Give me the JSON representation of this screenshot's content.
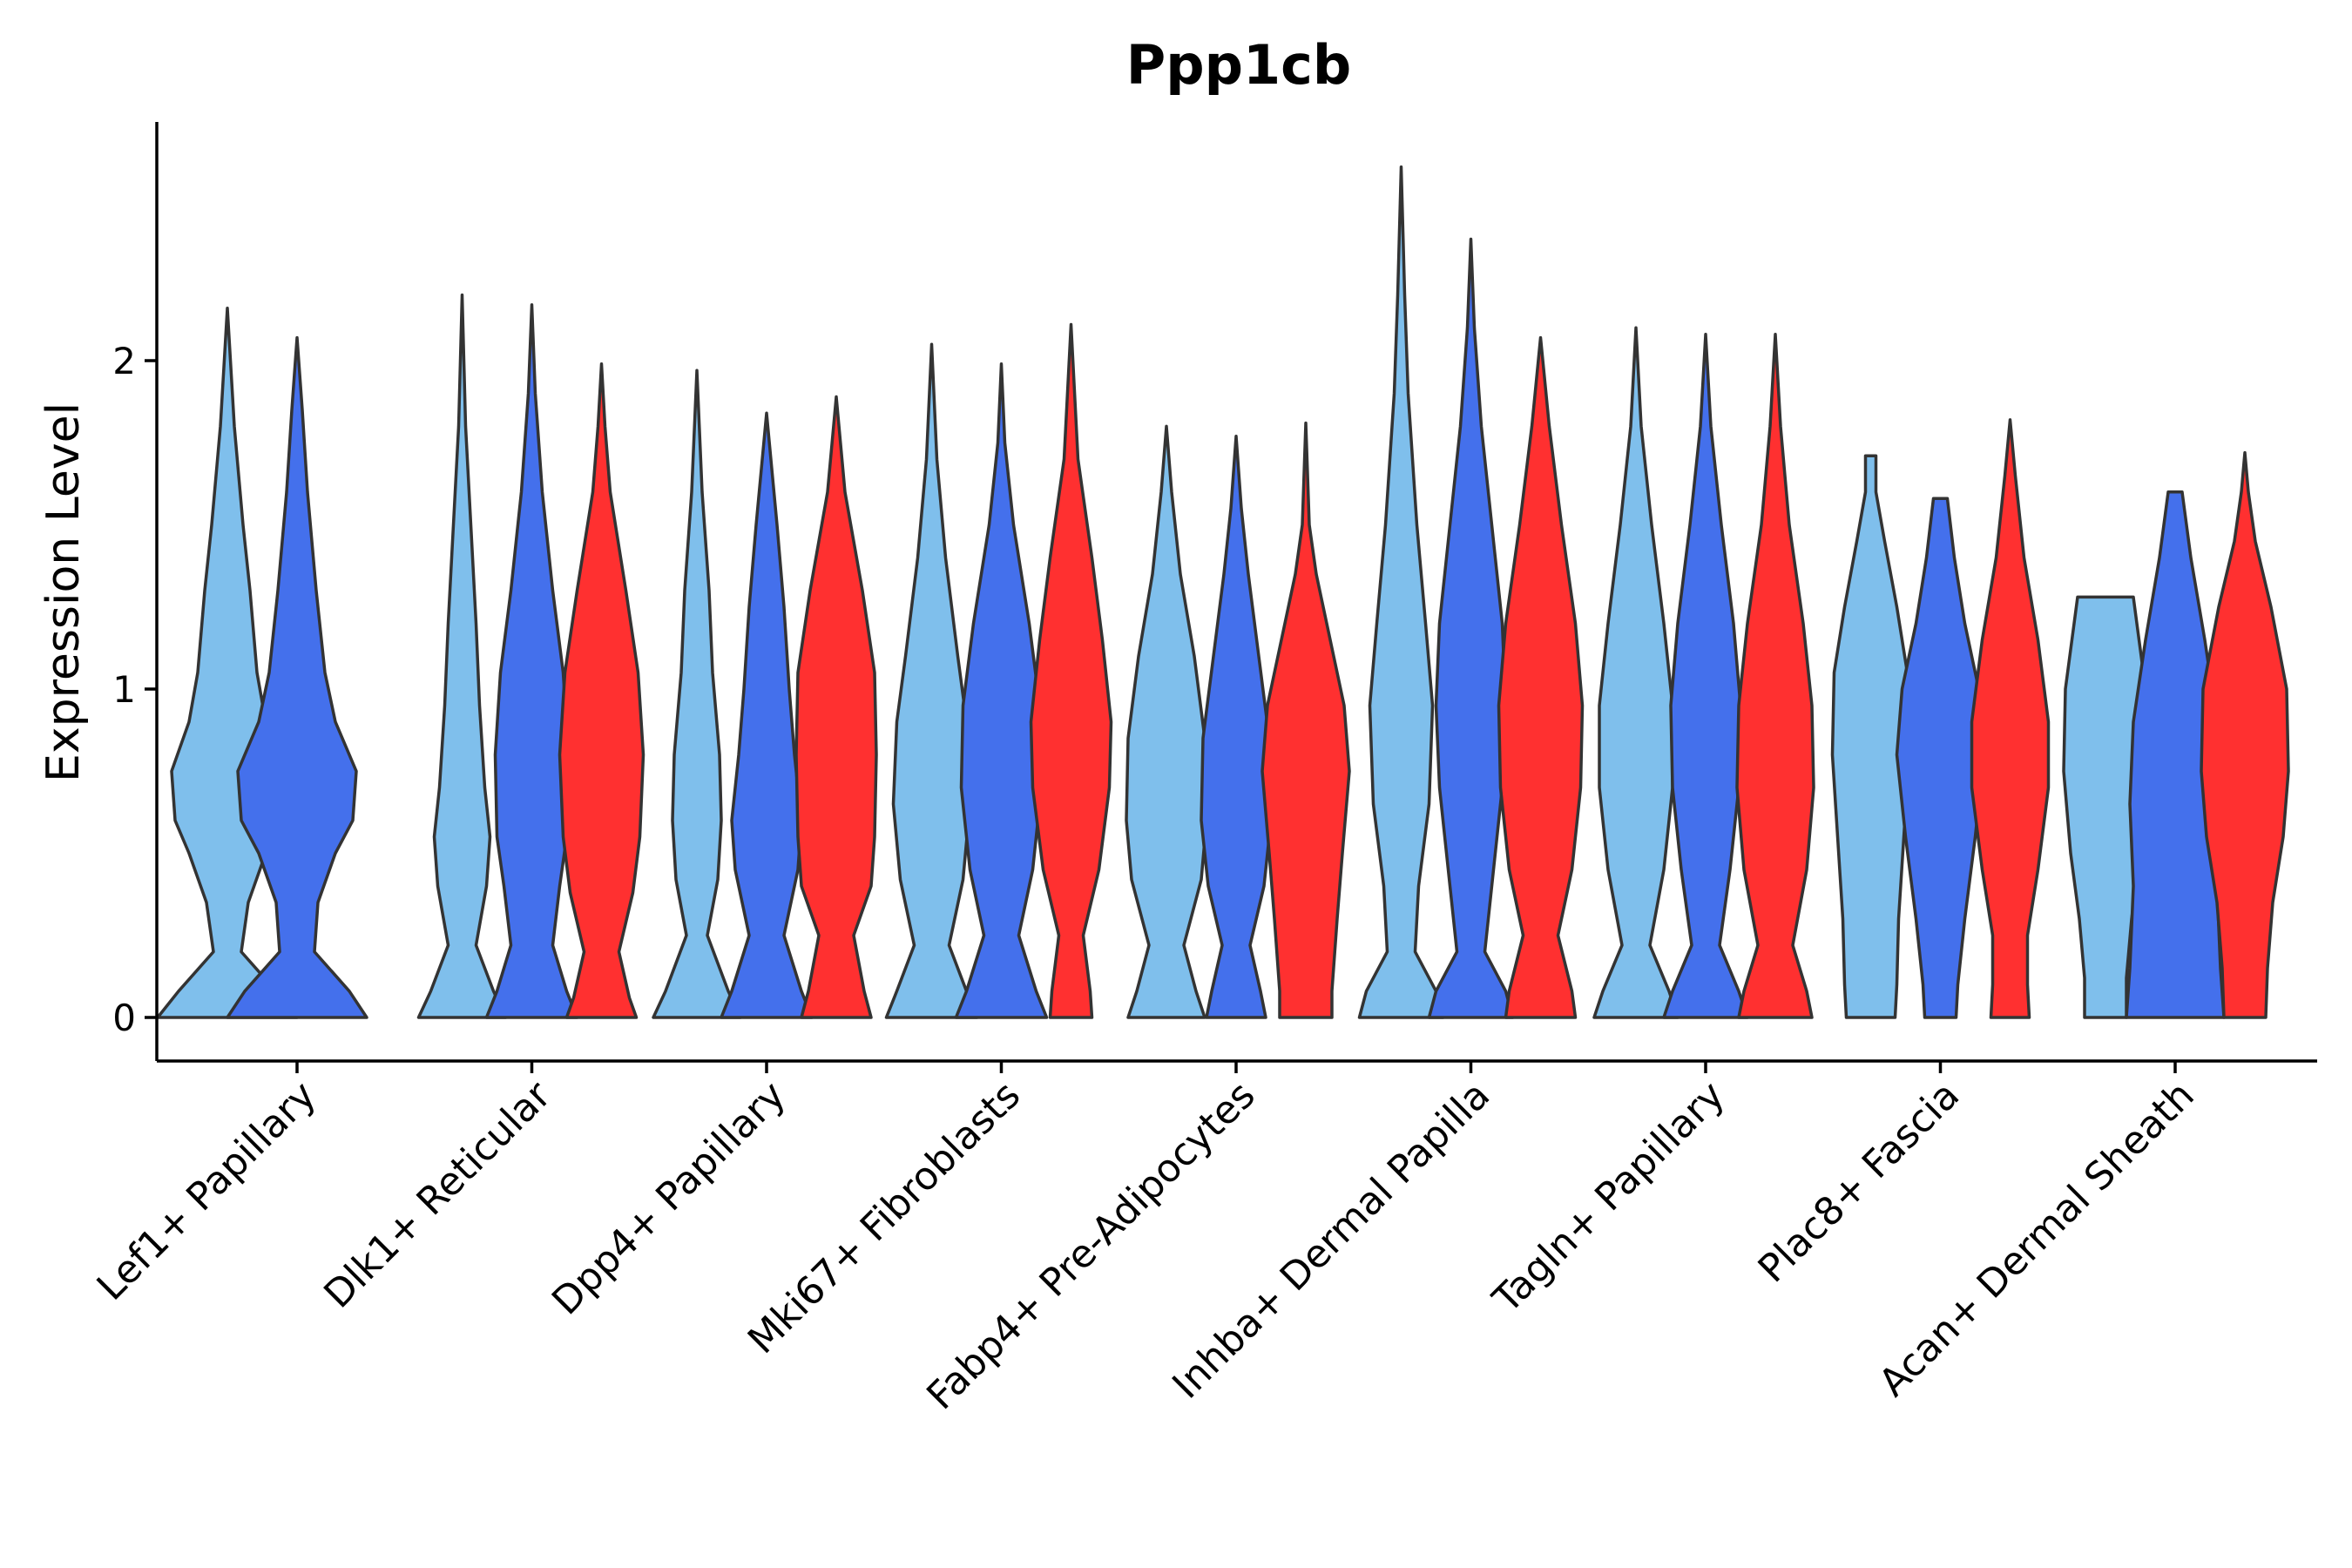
{
  "chart_data": {
    "type": "violin",
    "title": "Ppp1cb",
    "xlabel": "",
    "ylabel": "Expression Level",
    "ylim": [
      -0.13,
      2.72
    ],
    "yticks": [
      0,
      1,
      2
    ],
    "colors": {
      "group1": "#7fbfec",
      "group2": "#4470ec",
      "group3": "#ff3030",
      "outline": "#333333"
    },
    "categories": [
      "Lef1+ Papillary",
      "Dlk1+ Reticular",
      "Dpp4+ Papillary",
      "Mki67+ Fibroblasts",
      "Fabp4+ Pre-Adipocytes",
      "Inhba+ Dermal Papilla",
      "Tagln+ Papillary",
      "Plac8+ Fascia",
      "Acan+ Dermal Sheath"
    ],
    "violins": [
      {
        "category": 0,
        "group": 1,
        "max": 2.16,
        "shape": [
          [
            0,
            0.4
          ],
          [
            0.08,
            0.28
          ],
          [
            0.2,
            0.08
          ],
          [
            0.35,
            0.12
          ],
          [
            0.5,
            0.22
          ],
          [
            0.6,
            0.3
          ],
          [
            0.75,
            0.32
          ],
          [
            0.9,
            0.22
          ],
          [
            1.05,
            0.17
          ],
          [
            1.3,
            0.13
          ],
          [
            1.5,
            0.09
          ],
          [
            1.8,
            0.04
          ],
          [
            2.16,
            0.0
          ]
        ]
      },
      {
        "category": 0,
        "group": 2,
        "max": 2.07,
        "shape": [
          [
            0,
            0.4
          ],
          [
            0.08,
            0.3
          ],
          [
            0.2,
            0.1
          ],
          [
            0.35,
            0.12
          ],
          [
            0.5,
            0.22
          ],
          [
            0.6,
            0.32
          ],
          [
            0.75,
            0.34
          ],
          [
            0.9,
            0.22
          ],
          [
            1.05,
            0.16
          ],
          [
            1.3,
            0.11
          ],
          [
            1.6,
            0.06
          ],
          [
            1.85,
            0.03
          ],
          [
            2.07,
            0.0
          ]
        ]
      },
      {
        "category": 1,
        "group": 1,
        "max": 2.2,
        "shape": [
          [
            0,
            0.25
          ],
          [
            0.08,
            0.18
          ],
          [
            0.22,
            0.08
          ],
          [
            0.4,
            0.14
          ],
          [
            0.55,
            0.16
          ],
          [
            0.7,
            0.13
          ],
          [
            0.95,
            0.1
          ],
          [
            1.2,
            0.08
          ],
          [
            1.5,
            0.05
          ],
          [
            1.8,
            0.02
          ],
          [
            2.2,
            0.0
          ]
        ]
      },
      {
        "category": 1,
        "group": 2,
        "max": 2.17,
        "shape": [
          [
            0,
            0.26
          ],
          [
            0.08,
            0.2
          ],
          [
            0.22,
            0.12
          ],
          [
            0.4,
            0.16
          ],
          [
            0.55,
            0.2
          ],
          [
            0.8,
            0.21
          ],
          [
            1.05,
            0.18
          ],
          [
            1.3,
            0.12
          ],
          [
            1.6,
            0.06
          ],
          [
            1.9,
            0.02
          ],
          [
            2.17,
            0.0
          ]
        ]
      },
      {
        "category": 1,
        "group": 3,
        "max": 1.99,
        "shape": [
          [
            0,
            0.2
          ],
          [
            0.06,
            0.16
          ],
          [
            0.2,
            0.1
          ],
          [
            0.38,
            0.18
          ],
          [
            0.55,
            0.22
          ],
          [
            0.8,
            0.24
          ],
          [
            1.05,
            0.21
          ],
          [
            1.3,
            0.14
          ],
          [
            1.6,
            0.05
          ],
          [
            1.8,
            0.02
          ],
          [
            1.99,
            0.0
          ]
        ]
      },
      {
        "category": 2,
        "group": 1,
        "max": 1.97,
        "shape": [
          [
            0,
            0.25
          ],
          [
            0.08,
            0.18
          ],
          [
            0.25,
            0.06
          ],
          [
            0.42,
            0.12
          ],
          [
            0.6,
            0.14
          ],
          [
            0.8,
            0.13
          ],
          [
            1.05,
            0.09
          ],
          [
            1.3,
            0.07
          ],
          [
            1.6,
            0.03
          ],
          [
            1.97,
            0.0
          ]
        ]
      },
      {
        "category": 2,
        "group": 2,
        "max": 1.84,
        "shape": [
          [
            0,
            0.26
          ],
          [
            0.08,
            0.2
          ],
          [
            0.25,
            0.1
          ],
          [
            0.45,
            0.18
          ],
          [
            0.6,
            0.2
          ],
          [
            0.8,
            0.16
          ],
          [
            1.0,
            0.13
          ],
          [
            1.25,
            0.1
          ],
          [
            1.5,
            0.06
          ],
          [
            1.84,
            0.0
          ]
        ]
      },
      {
        "category": 2,
        "group": 3,
        "max": 1.89,
        "shape": [
          [
            0,
            0.2
          ],
          [
            0.08,
            0.16
          ],
          [
            0.25,
            0.1
          ],
          [
            0.4,
            0.2
          ],
          [
            0.55,
            0.22
          ],
          [
            0.8,
            0.23
          ],
          [
            1.05,
            0.22
          ],
          [
            1.3,
            0.15
          ],
          [
            1.6,
            0.05
          ],
          [
            1.89,
            0.0
          ]
        ]
      },
      {
        "category": 3,
        "group": 1,
        "max": 2.05,
        "shape": [
          [
            0,
            0.26
          ],
          [
            0.08,
            0.2
          ],
          [
            0.22,
            0.1
          ],
          [
            0.42,
            0.18
          ],
          [
            0.65,
            0.22
          ],
          [
            0.9,
            0.2
          ],
          [
            1.1,
            0.15
          ],
          [
            1.4,
            0.08
          ],
          [
            1.7,
            0.03
          ],
          [
            2.05,
            0.0
          ]
        ]
      },
      {
        "category": 3,
        "group": 2,
        "max": 1.99,
        "shape": [
          [
            0,
            0.26
          ],
          [
            0.08,
            0.2
          ],
          [
            0.25,
            0.1
          ],
          [
            0.45,
            0.18
          ],
          [
            0.7,
            0.23
          ],
          [
            0.95,
            0.22
          ],
          [
            1.2,
            0.16
          ],
          [
            1.5,
            0.07
          ],
          [
            1.75,
            0.02
          ],
          [
            1.99,
            0.0
          ]
        ]
      },
      {
        "category": 3,
        "group": 3,
        "max": 2.11,
        "shape": [
          [
            0,
            0.12
          ],
          [
            0.08,
            0.11
          ],
          [
            0.25,
            0.07
          ],
          [
            0.45,
            0.16
          ],
          [
            0.7,
            0.22
          ],
          [
            0.9,
            0.23
          ],
          [
            1.15,
            0.18
          ],
          [
            1.4,
            0.12
          ],
          [
            1.7,
            0.04
          ],
          [
            2.11,
            0.0
          ]
        ]
      },
      {
        "category": 4,
        "group": 1,
        "max": 1.8,
        "shape": [
          [
            0,
            0.22
          ],
          [
            0.08,
            0.17
          ],
          [
            0.22,
            0.1
          ],
          [
            0.42,
            0.2
          ],
          [
            0.6,
            0.23
          ],
          [
            0.85,
            0.22
          ],
          [
            1.1,
            0.16
          ],
          [
            1.35,
            0.08
          ],
          [
            1.6,
            0.03
          ],
          [
            1.8,
            0.0
          ]
        ]
      },
      {
        "category": 4,
        "group": 2,
        "max": 1.77,
        "shape": [
          [
            0,
            0.17
          ],
          [
            0.08,
            0.14
          ],
          [
            0.22,
            0.08
          ],
          [
            0.4,
            0.16
          ],
          [
            0.6,
            0.2
          ],
          [
            0.85,
            0.19
          ],
          [
            1.1,
            0.13
          ],
          [
            1.35,
            0.07
          ],
          [
            1.55,
            0.03
          ],
          [
            1.77,
            0.0
          ]
        ]
      },
      {
        "category": 4,
        "group": 3,
        "max": 1.81,
        "shape": [
          [
            0,
            0.15
          ],
          [
            0.08,
            0.15
          ],
          [
            0.3,
            0.18
          ],
          [
            0.5,
            0.21
          ],
          [
            0.75,
            0.25
          ],
          [
            0.95,
            0.22
          ],
          [
            1.15,
            0.14
          ],
          [
            1.35,
            0.06
          ],
          [
            1.5,
            0.02
          ],
          [
            1.81,
            0.0
          ]
        ]
      },
      {
        "category": 5,
        "group": 1,
        "max": 2.59,
        "shape": [
          [
            0,
            0.24
          ],
          [
            0.08,
            0.2
          ],
          [
            0.2,
            0.08
          ],
          [
            0.4,
            0.1
          ],
          [
            0.65,
            0.16
          ],
          [
            0.95,
            0.18
          ],
          [
            1.2,
            0.14
          ],
          [
            1.5,
            0.09
          ],
          [
            1.9,
            0.04
          ],
          [
            2.2,
            0.02
          ],
          [
            2.59,
            0.0
          ]
        ]
      },
      {
        "category": 5,
        "group": 2,
        "max": 2.37,
        "shape": [
          [
            0,
            0.24
          ],
          [
            0.08,
            0.2
          ],
          [
            0.2,
            0.08
          ],
          [
            0.4,
            0.12
          ],
          [
            0.7,
            0.18
          ],
          [
            0.95,
            0.2
          ],
          [
            1.2,
            0.18
          ],
          [
            1.5,
            0.12
          ],
          [
            1.8,
            0.06
          ],
          [
            2.1,
            0.02
          ],
          [
            2.37,
            0.0
          ]
        ]
      },
      {
        "category": 5,
        "group": 3,
        "max": 2.07,
        "shape": [
          [
            0,
            0.2
          ],
          [
            0.08,
            0.18
          ],
          [
            0.25,
            0.1
          ],
          [
            0.45,
            0.18
          ],
          [
            0.7,
            0.23
          ],
          [
            0.95,
            0.24
          ],
          [
            1.2,
            0.2
          ],
          [
            1.5,
            0.12
          ],
          [
            1.8,
            0.05
          ],
          [
            2.07,
            0.0
          ]
        ]
      },
      {
        "category": 6,
        "group": 1,
        "max": 2.1,
        "shape": [
          [
            0,
            0.24
          ],
          [
            0.08,
            0.19
          ],
          [
            0.22,
            0.08
          ],
          [
            0.45,
            0.16
          ],
          [
            0.7,
            0.21
          ],
          [
            0.95,
            0.21
          ],
          [
            1.2,
            0.16
          ],
          [
            1.5,
            0.09
          ],
          [
            1.8,
            0.03
          ],
          [
            2.1,
            0.0
          ]
        ]
      },
      {
        "category": 6,
        "group": 2,
        "max": 2.08,
        "shape": [
          [
            0,
            0.24
          ],
          [
            0.08,
            0.19
          ],
          [
            0.22,
            0.08
          ],
          [
            0.45,
            0.14
          ],
          [
            0.7,
            0.19
          ],
          [
            0.95,
            0.2
          ],
          [
            1.2,
            0.16
          ],
          [
            1.5,
            0.09
          ],
          [
            1.8,
            0.03
          ],
          [
            2.08,
            0.0
          ]
        ]
      },
      {
        "category": 6,
        "group": 3,
        "max": 2.08,
        "shape": [
          [
            0,
            0.21
          ],
          [
            0.08,
            0.18
          ],
          [
            0.22,
            0.1
          ],
          [
            0.45,
            0.18
          ],
          [
            0.7,
            0.22
          ],
          [
            0.95,
            0.21
          ],
          [
            1.2,
            0.16
          ],
          [
            1.5,
            0.08
          ],
          [
            1.8,
            0.03
          ],
          [
            2.08,
            0.0
          ]
        ]
      },
      {
        "category": 7,
        "group": 1,
        "max": 1.71,
        "shape": [
          [
            0,
            0.14
          ],
          [
            0.1,
            0.15
          ],
          [
            0.3,
            0.16
          ],
          [
            0.55,
            0.19
          ],
          [
            0.8,
            0.22
          ],
          [
            1.05,
            0.21
          ],
          [
            1.25,
            0.15
          ],
          [
            1.45,
            0.08
          ],
          [
            1.6,
            0.03
          ],
          [
            1.71,
            0.03
          ],
          [
            1.71,
            0.0
          ]
        ]
      },
      {
        "category": 7,
        "group": 2,
        "max": 1.58,
        "shape": [
          [
            0,
            0.09
          ],
          [
            0.1,
            0.1
          ],
          [
            0.3,
            0.14
          ],
          [
            0.55,
            0.2
          ],
          [
            0.8,
            0.25
          ],
          [
            1.0,
            0.22
          ],
          [
            1.2,
            0.14
          ],
          [
            1.4,
            0.08
          ],
          [
            1.58,
            0.04
          ],
          [
            1.58,
            0.0
          ]
        ]
      },
      {
        "category": 7,
        "group": 3,
        "max": 1.82,
        "shape": [
          [
            0,
            0.11
          ],
          [
            0.1,
            0.1
          ],
          [
            0.25,
            0.1
          ],
          [
            0.45,
            0.16
          ],
          [
            0.7,
            0.22
          ],
          [
            0.9,
            0.22
          ],
          [
            1.15,
            0.16
          ],
          [
            1.4,
            0.08
          ],
          [
            1.65,
            0.03
          ],
          [
            1.82,
            0.0
          ]
        ]
      },
      {
        "category": 8,
        "group": 1,
        "max": 1.28,
        "shape": [
          [
            0,
            0.12
          ],
          [
            0.12,
            0.12
          ],
          [
            0.3,
            0.15
          ],
          [
            0.5,
            0.2
          ],
          [
            0.75,
            0.24
          ],
          [
            1.0,
            0.23
          ],
          [
            1.2,
            0.18
          ],
          [
            1.28,
            0.16
          ],
          [
            1.28,
            0.0
          ]
        ]
      },
      {
        "category": 8,
        "group": 2,
        "max": 1.6,
        "shape": [
          [
            0,
            0.28
          ],
          [
            0.15,
            0.26
          ],
          [
            0.4,
            0.24
          ],
          [
            0.65,
            0.26
          ],
          [
            0.9,
            0.24
          ],
          [
            1.15,
            0.17
          ],
          [
            1.4,
            0.09
          ],
          [
            1.6,
            0.04
          ],
          [
            1.6,
            0.0
          ]
        ]
      },
      {
        "category": 8,
        "group": 3,
        "max": 1.72,
        "shape": [
          [
            0,
            0.12
          ],
          [
            0.15,
            0.13
          ],
          [
            0.35,
            0.16
          ],
          [
            0.55,
            0.22
          ],
          [
            0.75,
            0.25
          ],
          [
            1.0,
            0.24
          ],
          [
            1.25,
            0.15
          ],
          [
            1.45,
            0.06
          ],
          [
            1.6,
            0.02
          ],
          [
            1.72,
            0.0
          ]
        ]
      }
    ]
  }
}
